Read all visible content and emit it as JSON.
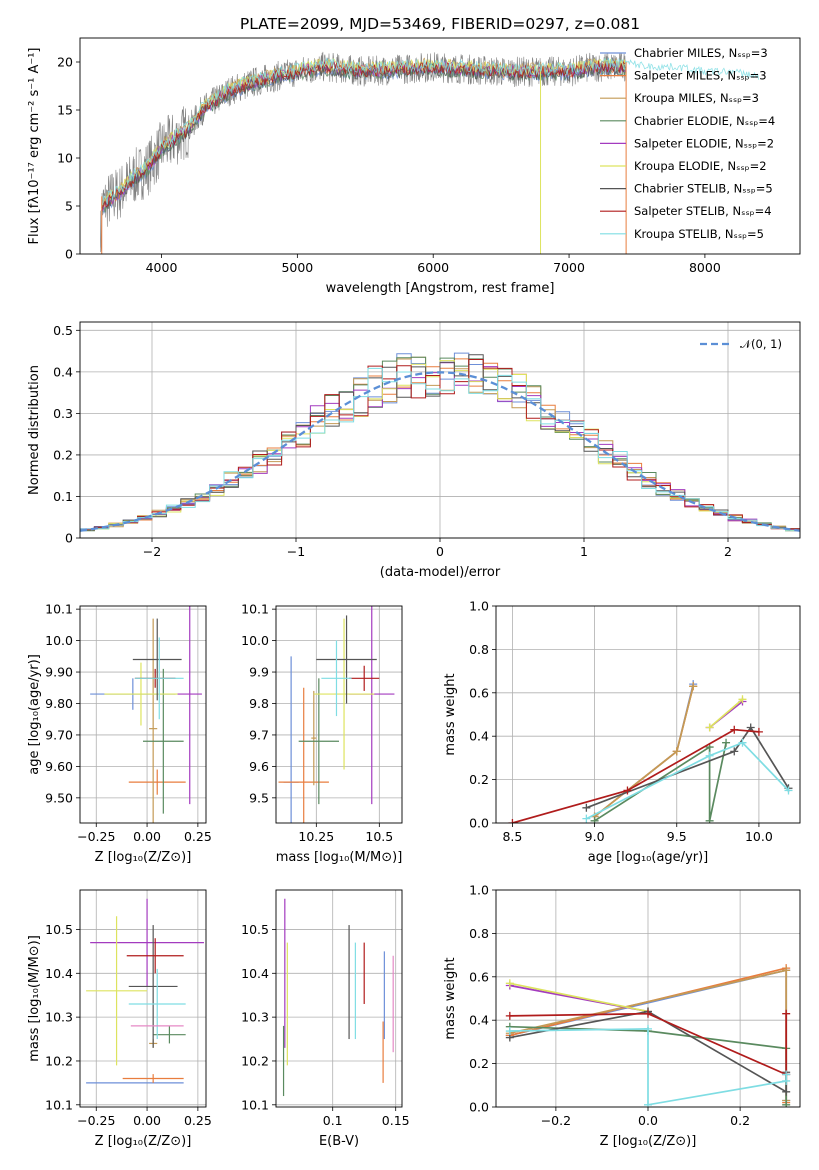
{
  "figure_title": "PLATE=2099, MJD=53469, FIBERID=0297, z=0.081",
  "legend_entries": [
    {
      "label": "Chabrier MILES, Nₛₛₚ=3",
      "color": "#6d8fd8"
    },
    {
      "label": "Salpeter MILES, Nₛₛₚ=3",
      "color": "#e87d3e"
    },
    {
      "label": "Kroupa MILES, Nₛₛₚ=3",
      "color": "#c49a55"
    },
    {
      "label": "Chabrier ELODIE, Nₛₛₚ=4",
      "color": "#5a8a5f"
    },
    {
      "label": "Salpeter ELODIE, Nₛₛₚ=2",
      "color": "#a33bbf"
    },
    {
      "label": "Kroupa ELODIE, Nₛₛₚ=2",
      "color": "#dde35f"
    },
    {
      "label": "Chabrier STELIB, Nₛₛₚ=5",
      "color": "#555555"
    },
    {
      "label": "Salpeter STELIB, Nₛₛₚ=4",
      "color": "#b01c1c"
    },
    {
      "label": "Kroupa STELIB, Nₛₛₚ=5",
      "color": "#7fdde3"
    }
  ],
  "chart_data": [
    {
      "id": "spectrum",
      "type": "line",
      "xlabel": "wavelength [Angstrom, rest frame]",
      "ylabel": "Flux [fλ10⁻¹⁷ erg cm⁻² s⁻¹ A⁻¹]",
      "xlim": [
        3400,
        8700
      ],
      "ylim": [
        0,
        22.5
      ],
      "xticks": [
        4000,
        5000,
        6000,
        7000,
        8000
      ],
      "yticks": [
        0,
        5,
        10,
        15,
        20
      ],
      "grid": false,
      "legend": "top-right",
      "continuum_x": [
        3550,
        3600,
        3700,
        3800,
        3900,
        4000,
        4100,
        4200,
        4300,
        4500,
        4700,
        5000,
        5200,
        5500,
        6000,
        6500,
        7000,
        7200,
        7400
      ],
      "continuum_y": [
        4.8,
        5.5,
        6.5,
        8,
        9,
        11,
        12,
        13,
        15,
        17,
        18,
        19,
        19.5,
        19,
        19.5,
        19,
        19,
        19.5,
        19.5
      ],
      "model_x": [
        7400,
        7600,
        7800,
        8000,
        8200,
        8400
      ],
      "model_y": [
        20,
        19.5,
        19.5,
        19,
        19,
        18.5
      ]
    },
    {
      "id": "residual-histogram",
      "type": "bar",
      "xlabel": "(data-model)/error",
      "ylabel": "Normed distribution",
      "xlim": [
        -2.5,
        2.5
      ],
      "ylim": [
        0,
        0.52
      ],
      "xticks": [
        -2,
        -1,
        0,
        1,
        2
      ],
      "yticks": [
        0.0,
        0.1,
        0.2,
        0.3,
        0.4,
        0.5
      ],
      "grid": true,
      "legend": "top-right",
      "reference_curve": "𝒩(0, 1)",
      "bin_width": 0.1
    },
    {
      "id": "age-vs-Z",
      "type": "scatter",
      "xlabel": "Z [log₁₀(Z/Z⊙)]",
      "ylabel": "age  [log₁₀(age/yr)]",
      "xlim": [
        -0.33,
        0.29
      ],
      "ylim": [
        9.42,
        10.11
      ],
      "xticks": [
        -0.25,
        0.0,
        0.25
      ],
      "yticks": [
        9.5,
        9.6,
        9.7,
        9.8,
        9.9,
        10.0,
        10.1
      ],
      "grid": true,
      "points": [
        {
          "x": -0.07,
          "y": 9.83,
          "ex": 0.21,
          "ey": 0.05,
          "color": "#6d8fd8"
        },
        {
          "x": 0.05,
          "y": 9.55,
          "ex": 0.14,
          "ey": 0.04,
          "color": "#e87d3e"
        },
        {
          "x": 0.03,
          "y": 9.72,
          "ex": 0.02,
          "ey": 0.35,
          "color": "#c49a55"
        },
        {
          "x": 0.08,
          "y": 9.68,
          "ex": 0.1,
          "ey": 0.23,
          "color": "#5a8a5f"
        },
        {
          "x": 0.21,
          "y": 9.83,
          "ex": 0.06,
          "ey": 0.35,
          "color": "#a33bbf"
        },
        {
          "x": -0.03,
          "y": 9.83,
          "ex": 0.18,
          "ey": 0.1,
          "color": "#dde35f"
        },
        {
          "x": 0.05,
          "y": 9.94,
          "ex": 0.12,
          "ey": 0.13,
          "color": "#555555"
        },
        {
          "x": 0.04,
          "y": 9.88,
          "ex": 0.1,
          "ey": 0.03,
          "color": "#b01c1c"
        },
        {
          "x": 0.06,
          "y": 9.88,
          "ex": 0.12,
          "ey": 0.13,
          "color": "#7fdde3"
        }
      ]
    },
    {
      "id": "age-vs-mass",
      "type": "scatter",
      "xlabel": "mass [log₁₀(M/M⊙)]",
      "ylabel": "",
      "xlim": [
        10.09,
        10.59
      ],
      "ylim": [
        9.42,
        10.11
      ],
      "xticks": [
        10.25,
        10.5
      ],
      "yticks": [
        9.5,
        9.6,
        9.7,
        9.8,
        9.9,
        10.0,
        10.1
      ],
      "grid": true,
      "points": [
        {
          "x": 10.15,
          "y": 9.55,
          "ex": 0.03,
          "ey": 0.4,
          "color": "#6d8fd8"
        },
        {
          "x": 10.2,
          "y": 9.55,
          "ex": 0.1,
          "ey": 0.3,
          "color": "#e87d3e"
        },
        {
          "x": 10.24,
          "y": 9.69,
          "ex": 0.01,
          "ey": 0.15,
          "color": "#c49a55"
        },
        {
          "x": 10.26,
          "y": 9.68,
          "ex": 0.08,
          "ey": 0.2,
          "color": "#5a8a5f"
        },
        {
          "x": 10.47,
          "y": 9.83,
          "ex": 0.09,
          "ey": 0.35,
          "color": "#a33bbf"
        },
        {
          "x": 10.36,
          "y": 9.83,
          "ex": 0.12,
          "ey": 0.24,
          "color": "#dde35f"
        },
        {
          "x": 10.37,
          "y": 9.94,
          "ex": 0.12,
          "ey": 0.14,
          "color": "#555555"
        },
        {
          "x": 10.44,
          "y": 9.88,
          "ex": 0.06,
          "ey": 0.04,
          "color": "#b01c1c"
        },
        {
          "x": 10.33,
          "y": 9.88,
          "ex": 0.06,
          "ey": 0.12,
          "color": "#7fdde3"
        }
      ]
    },
    {
      "id": "mass-weight-vs-age",
      "type": "line",
      "xlabel": "age  [log₁₀(age/yr)]",
      "ylabel": "mass weight",
      "xlim": [
        8.4,
        10.25
      ],
      "ylim": [
        0,
        1
      ],
      "xticks": [
        8.5,
        9.0,
        9.5,
        10.0
      ],
      "yticks": [
        0.0,
        0.2,
        0.4,
        0.6,
        0.8,
        1.0
      ],
      "grid": true,
      "series": [
        {
          "color": "#6d8fd8",
          "x": [
            9.0,
            9.5,
            9.6
          ],
          "y": [
            0.03,
            0.33,
            0.64
          ]
        },
        {
          "color": "#e87d3e",
          "x": [
            9.0,
            9.5,
            9.6
          ],
          "y": [
            0.03,
            0.33,
            0.63
          ]
        },
        {
          "color": "#c49a55",
          "x": [
            9.0,
            9.5,
            9.6
          ],
          "y": [
            0.03,
            0.33,
            0.63
          ]
        },
        {
          "color": "#5a8a5f",
          "x": [
            9.0,
            9.7,
            9.7,
            9.8
          ],
          "y": [
            0.01,
            0.35,
            0.01,
            0.37
          ]
        },
        {
          "color": "#a33bbf",
          "x": [
            9.7,
            9.9
          ],
          "y": [
            0.44,
            0.56
          ]
        },
        {
          "color": "#dde35f",
          "x": [
            9.7,
            9.9
          ],
          "y": [
            0.44,
            0.57
          ]
        },
        {
          "color": "#555555",
          "x": [
            8.95,
            9.85,
            9.95,
            10.18
          ],
          "y": [
            0.07,
            0.33,
            0.44,
            0.16
          ]
        },
        {
          "color": "#b01c1c",
          "x": [
            8.5,
            9.2,
            9.85,
            10.0
          ],
          "y": [
            0.0,
            0.15,
            0.43,
            0.42
          ]
        },
        {
          "color": "#7fdde3",
          "x": [
            8.95,
            9.7,
            9.9,
            10.18
          ],
          "y": [
            0.02,
            0.31,
            0.37,
            0.15
          ]
        }
      ]
    },
    {
      "id": "mass-vs-Z",
      "type": "scatter",
      "xlabel": "Z [log₁₀(Z/Z⊙)]",
      "ylabel": "mass [log₁₀(M/M⊙)]",
      "xlim": [
        -0.33,
        0.29
      ],
      "ylim": [
        10.095,
        10.59
      ],
      "xticks": [
        -0.25,
        0.0,
        0.25
      ],
      "yticks": [
        10.1,
        10.2,
        10.3,
        10.4,
        10.5
      ],
      "grid": true,
      "points": [
        {
          "x": -0.06,
          "y": 10.15,
          "ex": 0.24,
          "ey": 0.0,
          "color": "#6d8fd8"
        },
        {
          "x": 0.03,
          "y": 10.16,
          "ex": 0.15,
          "ey": 0.01,
          "color": "#e87d3e"
        },
        {
          "x": 0.03,
          "y": 10.24,
          "ex": 0.02,
          "ey": 0.01,
          "color": "#c49a55"
        },
        {
          "x": 0.11,
          "y": 10.26,
          "ex": 0.08,
          "ey": 0.02,
          "color": "#5a8a5f"
        },
        {
          "x": 0.0,
          "y": 10.47,
          "ex": 0.28,
          "ey": 0.1,
          "color": "#a33bbf"
        },
        {
          "x": -0.15,
          "y": 10.36,
          "ex": 0.15,
          "ey": 0.17,
          "color": "#dde35f"
        },
        {
          "x": 0.03,
          "y": 10.37,
          "ex": 0.12,
          "ey": 0.14,
          "color": "#555555"
        },
        {
          "x": 0.04,
          "y": 10.44,
          "ex": 0.14,
          "ey": 0.04,
          "color": "#b01c1c"
        },
        {
          "x": 0.05,
          "y": 10.33,
          "ex": 0.14,
          "ey": 0.08,
          "color": "#7fdde3"
        },
        {
          "x": 0.05,
          "y": 10.28,
          "ex": 0.13,
          "ey": 0.0,
          "color": "#e589c6"
        }
      ]
    },
    {
      "id": "mass-vs-EBV",
      "type": "scatter",
      "xlabel": "E(B-V)",
      "ylabel": "",
      "xlim": [
        0.055,
        0.155
      ],
      "ylim": [
        10.095,
        10.59
      ],
      "xticks": [
        0.1,
        0.15
      ],
      "yticks": [
        10.1,
        10.2,
        10.3,
        10.4,
        10.5
      ],
      "grid": true,
      "points": [
        {
          "x": 0.062,
          "y": 10.4,
          "ex": 0,
          "ey": 0.17,
          "color": "#a33bbf"
        },
        {
          "x": 0.064,
          "y": 10.33,
          "ex": 0,
          "ey": 0.14,
          "color": "#dde35f"
        },
        {
          "x": 0.061,
          "y": 10.2,
          "ex": 0,
          "ey": 0.08,
          "color": "#5a8a5f"
        },
        {
          "x": 0.113,
          "y": 10.38,
          "ex": 0,
          "ey": 0.13,
          "color": "#555555"
        },
        {
          "x": 0.118,
          "y": 10.36,
          "ex": 0,
          "ey": 0.11,
          "color": "#7fdde3"
        },
        {
          "x": 0.125,
          "y": 10.4,
          "ex": 0,
          "ey": 0.07,
          "color": "#b01c1c"
        },
        {
          "x": 0.141,
          "y": 10.35,
          "ex": 0,
          "ey": 0.1,
          "color": "#6d8fd8"
        },
        {
          "x": 0.14,
          "y": 10.22,
          "ex": 0,
          "ey": 0.07,
          "color": "#e87d3e"
        },
        {
          "x": 0.148,
          "y": 10.33,
          "ex": 0,
          "ey": 0.11,
          "color": "#e589c6"
        }
      ]
    },
    {
      "id": "mass-weight-vs-Z",
      "type": "line",
      "xlabel": "Z [log₁₀(Z/Z⊙)]",
      "ylabel": "mass weight",
      "xlim": [
        -0.33,
        0.33
      ],
      "ylim": [
        0,
        1
      ],
      "xticks": [
        -0.2,
        0.0,
        0.2
      ],
      "yticks": [
        0.0,
        0.2,
        0.4,
        0.6,
        0.8,
        1.0
      ],
      "grid": true,
      "series": [
        {
          "color": "#6d8fd8",
          "x": [
            -0.3,
            0.3,
            0.3
          ],
          "y": [
            0.33,
            0.63,
            0.03
          ]
        },
        {
          "color": "#e87d3e",
          "x": [
            -0.3,
            0.3,
            0.3
          ],
          "y": [
            0.33,
            0.64,
            0.02
          ]
        },
        {
          "color": "#c49a55",
          "x": [
            -0.3,
            0.3,
            0.3
          ],
          "y": [
            0.34,
            0.63,
            0.03
          ]
        },
        {
          "color": "#5a8a5f",
          "x": [
            -0.3,
            0.0,
            0.3,
            0.3
          ],
          "y": [
            0.37,
            0.35,
            0.27,
            0.01
          ]
        },
        {
          "color": "#a33bbf",
          "x": [
            -0.3,
            0.0
          ],
          "y": [
            0.56,
            0.44
          ]
        },
        {
          "color": "#dde35f",
          "x": [
            -0.3,
            0.0
          ],
          "y": [
            0.57,
            0.44
          ]
        },
        {
          "color": "#555555",
          "x": [
            -0.3,
            0.0,
            0.3,
            0.3
          ],
          "y": [
            0.32,
            0.44,
            0.07,
            0.16
          ]
        },
        {
          "color": "#b01c1c",
          "x": [
            -0.3,
            0.0,
            0.3,
            0.3
          ],
          "y": [
            0.42,
            0.43,
            0.15,
            0.43
          ]
        },
        {
          "color": "#7fdde3",
          "x": [
            -0.3,
            0.0,
            0.0,
            0.3,
            0.3
          ],
          "y": [
            0.35,
            0.36,
            0.01,
            0.12,
            0.15
          ]
        }
      ]
    }
  ]
}
